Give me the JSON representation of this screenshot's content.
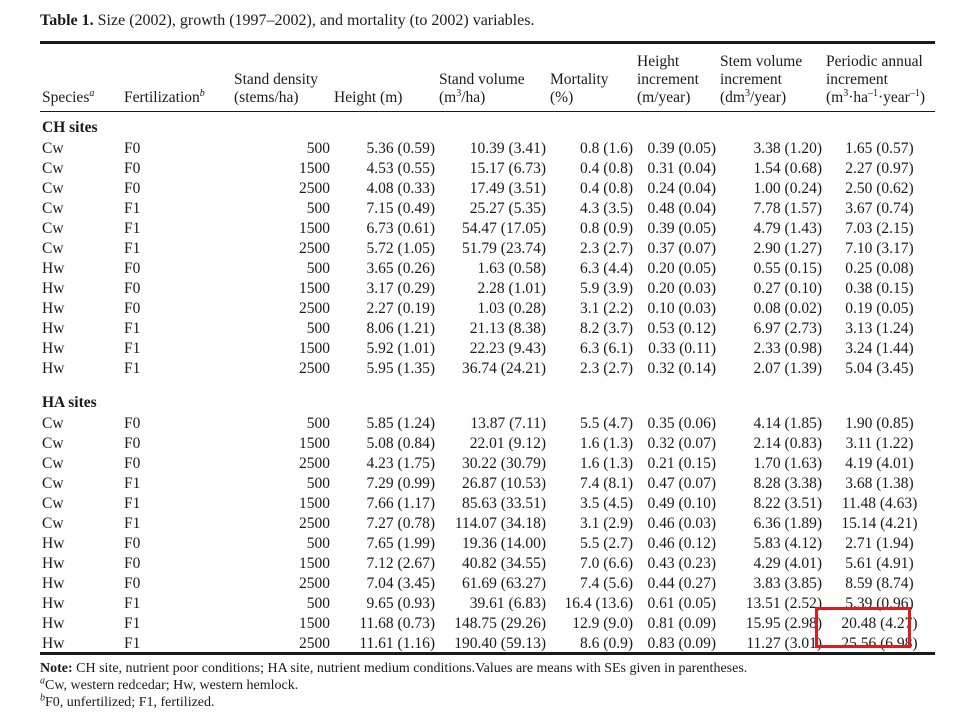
{
  "caption": {
    "label": "Table 1.",
    "text": "Size (2002), growth (1997–2002), and mortality (to 2002) variables."
  },
  "headers": {
    "species": "Species",
    "species_mark": "a",
    "fertilization": "Fertilization",
    "fertilization_mark": "b",
    "stand_density_1": "Stand density",
    "stand_density_2": "(stems/ha)",
    "height": "Height (m)",
    "stand_volume_1": "Stand volume",
    "stand_volume_2a": "(m",
    "stand_volume_2sup": "3",
    "stand_volume_2b": "/ha)",
    "mortality_1": "Mortality",
    "mortality_2": "(%)",
    "height_inc_1": "Height",
    "height_inc_2": "increment",
    "height_inc_3": "(m/year)",
    "stem_inc_1": "Stem volume",
    "stem_inc_2": "increment",
    "stem_inc_3a": "(dm",
    "stem_inc_3sup": "3",
    "stem_inc_3b": "/year)",
    "pai_1": "Periodic annual",
    "pai_2": "increment",
    "pai_3a": "(m",
    "pai_3sup1": "3",
    "pai_3b": "·ha",
    "pai_3sup2": "–1",
    "pai_3c": "·year",
    "pai_3sup3": "–1",
    "pai_3d": ")"
  },
  "sections": [
    {
      "title": "CH sites",
      "rows": [
        [
          "Cw",
          "F0",
          "500",
          "5.36 (0.59)",
          "10.39 (3.41)",
          "0.8 (1.6)",
          "0.39 (0.05)",
          "3.38 (1.20)",
          "1.65 (0.57)"
        ],
        [
          "Cw",
          "F0",
          "1500",
          "4.53 (0.55)",
          "15.17 (6.73)",
          "0.4 (0.8)",
          "0.31 (0.04)",
          "1.54 (0.68)",
          "2.27 (0.97)"
        ],
        [
          "Cw",
          "F0",
          "2500",
          "4.08 (0.33)",
          "17.49 (3.51)",
          "0.4 (0.8)",
          "0.24 (0.04)",
          "1.00 (0.24)",
          "2.50 (0.62)"
        ],
        [
          "Cw",
          "F1",
          "500",
          "7.15 (0.49)",
          "25.27 (5.35)",
          "4.3 (3.5)",
          "0.48 (0.04)",
          "7.78 (1.57)",
          "3.67 (0.74)"
        ],
        [
          "Cw",
          "F1",
          "1500",
          "6.73 (0.61)",
          "54.47 (17.05)",
          "0.8 (0.9)",
          "0.39 (0.05)",
          "4.79 (1.43)",
          "7.03 (2.15)"
        ],
        [
          "Cw",
          "F1",
          "2500",
          "5.72 (1.05)",
          "51.79 (23.74)",
          "2.3 (2.7)",
          "0.37 (0.07)",
          "2.90 (1.27)",
          "7.10 (3.17)"
        ],
        [
          "Hw",
          "F0",
          "500",
          "3.65 (0.26)",
          "1.63 (0.58)",
          "6.3 (4.4)",
          "0.20 (0.05)",
          "0.55 (0.15)",
          "0.25 (0.08)"
        ],
        [
          "Hw",
          "F0",
          "1500",
          "3.17 (0.29)",
          "2.28 (1.01)",
          "5.9 (3.9)",
          "0.20 (0.03)",
          "0.27 (0.10)",
          "0.38 (0.15)"
        ],
        [
          "Hw",
          "F0",
          "2500",
          "2.27 (0.19)",
          "1.03 (0.28)",
          "3.1 (2.2)",
          "0.10 (0.03)",
          "0.08 (0.02)",
          "0.19 (0.05)"
        ],
        [
          "Hw",
          "F1",
          "500",
          "8.06 (1.21)",
          "21.13 (8.38)",
          "8.2 (3.7)",
          "0.53 (0.12)",
          "6.97 (2.73)",
          "3.13 (1.24)"
        ],
        [
          "Hw",
          "F1",
          "1500",
          "5.92 (1.01)",
          "22.23 (9.43)",
          "6.3 (6.1)",
          "0.33 (0.11)",
          "2.33 (0.98)",
          "3.24 (1.44)"
        ],
        [
          "Hw",
          "F1",
          "2500",
          "5.95 (1.35)",
          "36.74 (24.21)",
          "2.3 (2.7)",
          "0.32 (0.14)",
          "2.07 (1.39)",
          "5.04 (3.45)"
        ]
      ]
    },
    {
      "title": "HA sites",
      "rows": [
        [
          "Cw",
          "F0",
          "500",
          "5.85 (1.24)",
          "13.87 (7.11)",
          "5.5 (4.7)",
          "0.35 (0.06)",
          "4.14 (1.85)",
          "1.90 (0.85)"
        ],
        [
          "Cw",
          "F0",
          "1500",
          "5.08 (0.84)",
          "22.01 (9.12)",
          "1.6 (1.3)",
          "0.32 (0.07)",
          "2.14 (0.83)",
          "3.11 (1.22)"
        ],
        [
          "Cw",
          "F0",
          "2500",
          "4.23 (1.75)",
          "30.22 (30.79)",
          "1.6 (1.3)",
          "0.21 (0.15)",
          "1.70 (1.63)",
          "4.19 (4.01)"
        ],
        [
          "Cw",
          "F1",
          "500",
          "7.29 (0.99)",
          "26.87 (10.53)",
          "7.4 (8.1)",
          "0.47 (0.07)",
          "8.28 (3.38)",
          "3.68 (1.38)"
        ],
        [
          "Cw",
          "F1",
          "1500",
          "7.66 (1.17)",
          "85.63 (33.51)",
          "3.5 (4.5)",
          "0.49 (0.10)",
          "8.22 (3.51)",
          "11.48 (4.63)"
        ],
        [
          "Cw",
          "F1",
          "2500",
          "7.27 (0.78)",
          "114.07 (34.18)",
          "3.1 (2.9)",
          "0.46 (0.03)",
          "6.36 (1.89)",
          "15.14 (4.21)"
        ],
        [
          "Hw",
          "F0",
          "500",
          "7.65 (1.99)",
          "19.36 (14.00)",
          "5.5 (2.7)",
          "0.46 (0.12)",
          "5.83 (4.12)",
          "2.71 (1.94)"
        ],
        [
          "Hw",
          "F0",
          "1500",
          "7.12 (2.67)",
          "40.82 (34.55)",
          "7.0 (6.6)",
          "0.43 (0.23)",
          "4.29 (4.01)",
          "5.61 (4.91)"
        ],
        [
          "Hw",
          "F0",
          "2500",
          "7.04 (3.45)",
          "61.69 (63.27)",
          "7.4 (5.6)",
          "0.44 (0.27)",
          "3.83 (3.85)",
          "8.59 (8.74)"
        ],
        [
          "Hw",
          "F1",
          "500",
          "9.65 (0.93)",
          "39.61 (6.83)",
          "16.4 (13.6)",
          "0.61 (0.05)",
          "13.51 (2.52)",
          "5.39 (0.96)"
        ],
        [
          "Hw",
          "F1",
          "1500",
          "11.68 (0.73)",
          "148.75 (29.26)",
          "12.9 (9.0)",
          "0.81 (0.09)",
          "15.95 (2.98)",
          "20.48 (4.27)"
        ],
        [
          "Hw",
          "F1",
          "2500",
          "11.61 (1.16)",
          "190.40 (59.13)",
          "8.6 (0.9)",
          "0.83 (0.09)",
          "11.27 (3.01)",
          "25.56 (6.98)"
        ]
      ]
    }
  ],
  "notes": {
    "label": "Note:",
    "text": "CH site, nutrient poor conditions; HA site, nutrient medium conditions.Values are means with SEs given in parentheses.",
    "a_mark": "a",
    "a_text": "Cw, western redcedar; Hw, western hemlock.",
    "b_mark": "b",
    "b_text": "F0, unfertilized; F1, fertilized."
  },
  "highlight_color": "#e01b1b"
}
